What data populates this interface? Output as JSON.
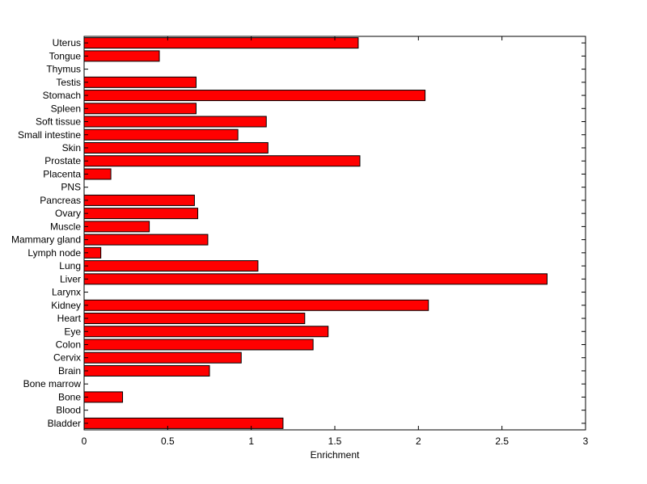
{
  "chart_data": {
    "type": "bar",
    "orientation": "horizontal",
    "title": "",
    "xlabel": "Enrichment",
    "ylabel": "",
    "xlim": [
      0,
      3
    ],
    "xticks": [
      0,
      0.5,
      1,
      1.5,
      2,
      2.5,
      3
    ],
    "xtick_labels": [
      "0",
      "0.5",
      "1",
      "1.5",
      "2",
      "2.5",
      "3"
    ],
    "grid": false,
    "legend": "none",
    "bar_color": "#ff0000",
    "edge_color": "#000000",
    "categories": [
      "Bladder",
      "Blood",
      "Bone",
      "Bone marrow",
      "Brain",
      "Cervix",
      "Colon",
      "Eye",
      "Heart",
      "Kidney",
      "Larynx",
      "Liver",
      "Lung",
      "Lymph node",
      "Mammary gland",
      "Muscle",
      "Ovary",
      "Pancreas",
      "PNS",
      "Placenta",
      "Prostate",
      "Skin",
      "Small intestine",
      "Soft tissue",
      "Spleen",
      "Stomach",
      "Testis",
      "Thymus",
      "Tongue",
      "Uterus"
    ],
    "values": [
      1.19,
      0,
      0.23,
      0,
      0.75,
      0.94,
      1.37,
      1.46,
      1.32,
      2.06,
      0,
      2.77,
      1.04,
      0.1,
      0.74,
      0.39,
      0.68,
      0.66,
      0,
      0.16,
      1.65,
      1.1,
      0.92,
      1.09,
      0.67,
      2.04,
      0.67,
      0,
      0.45,
      1.64
    ]
  }
}
